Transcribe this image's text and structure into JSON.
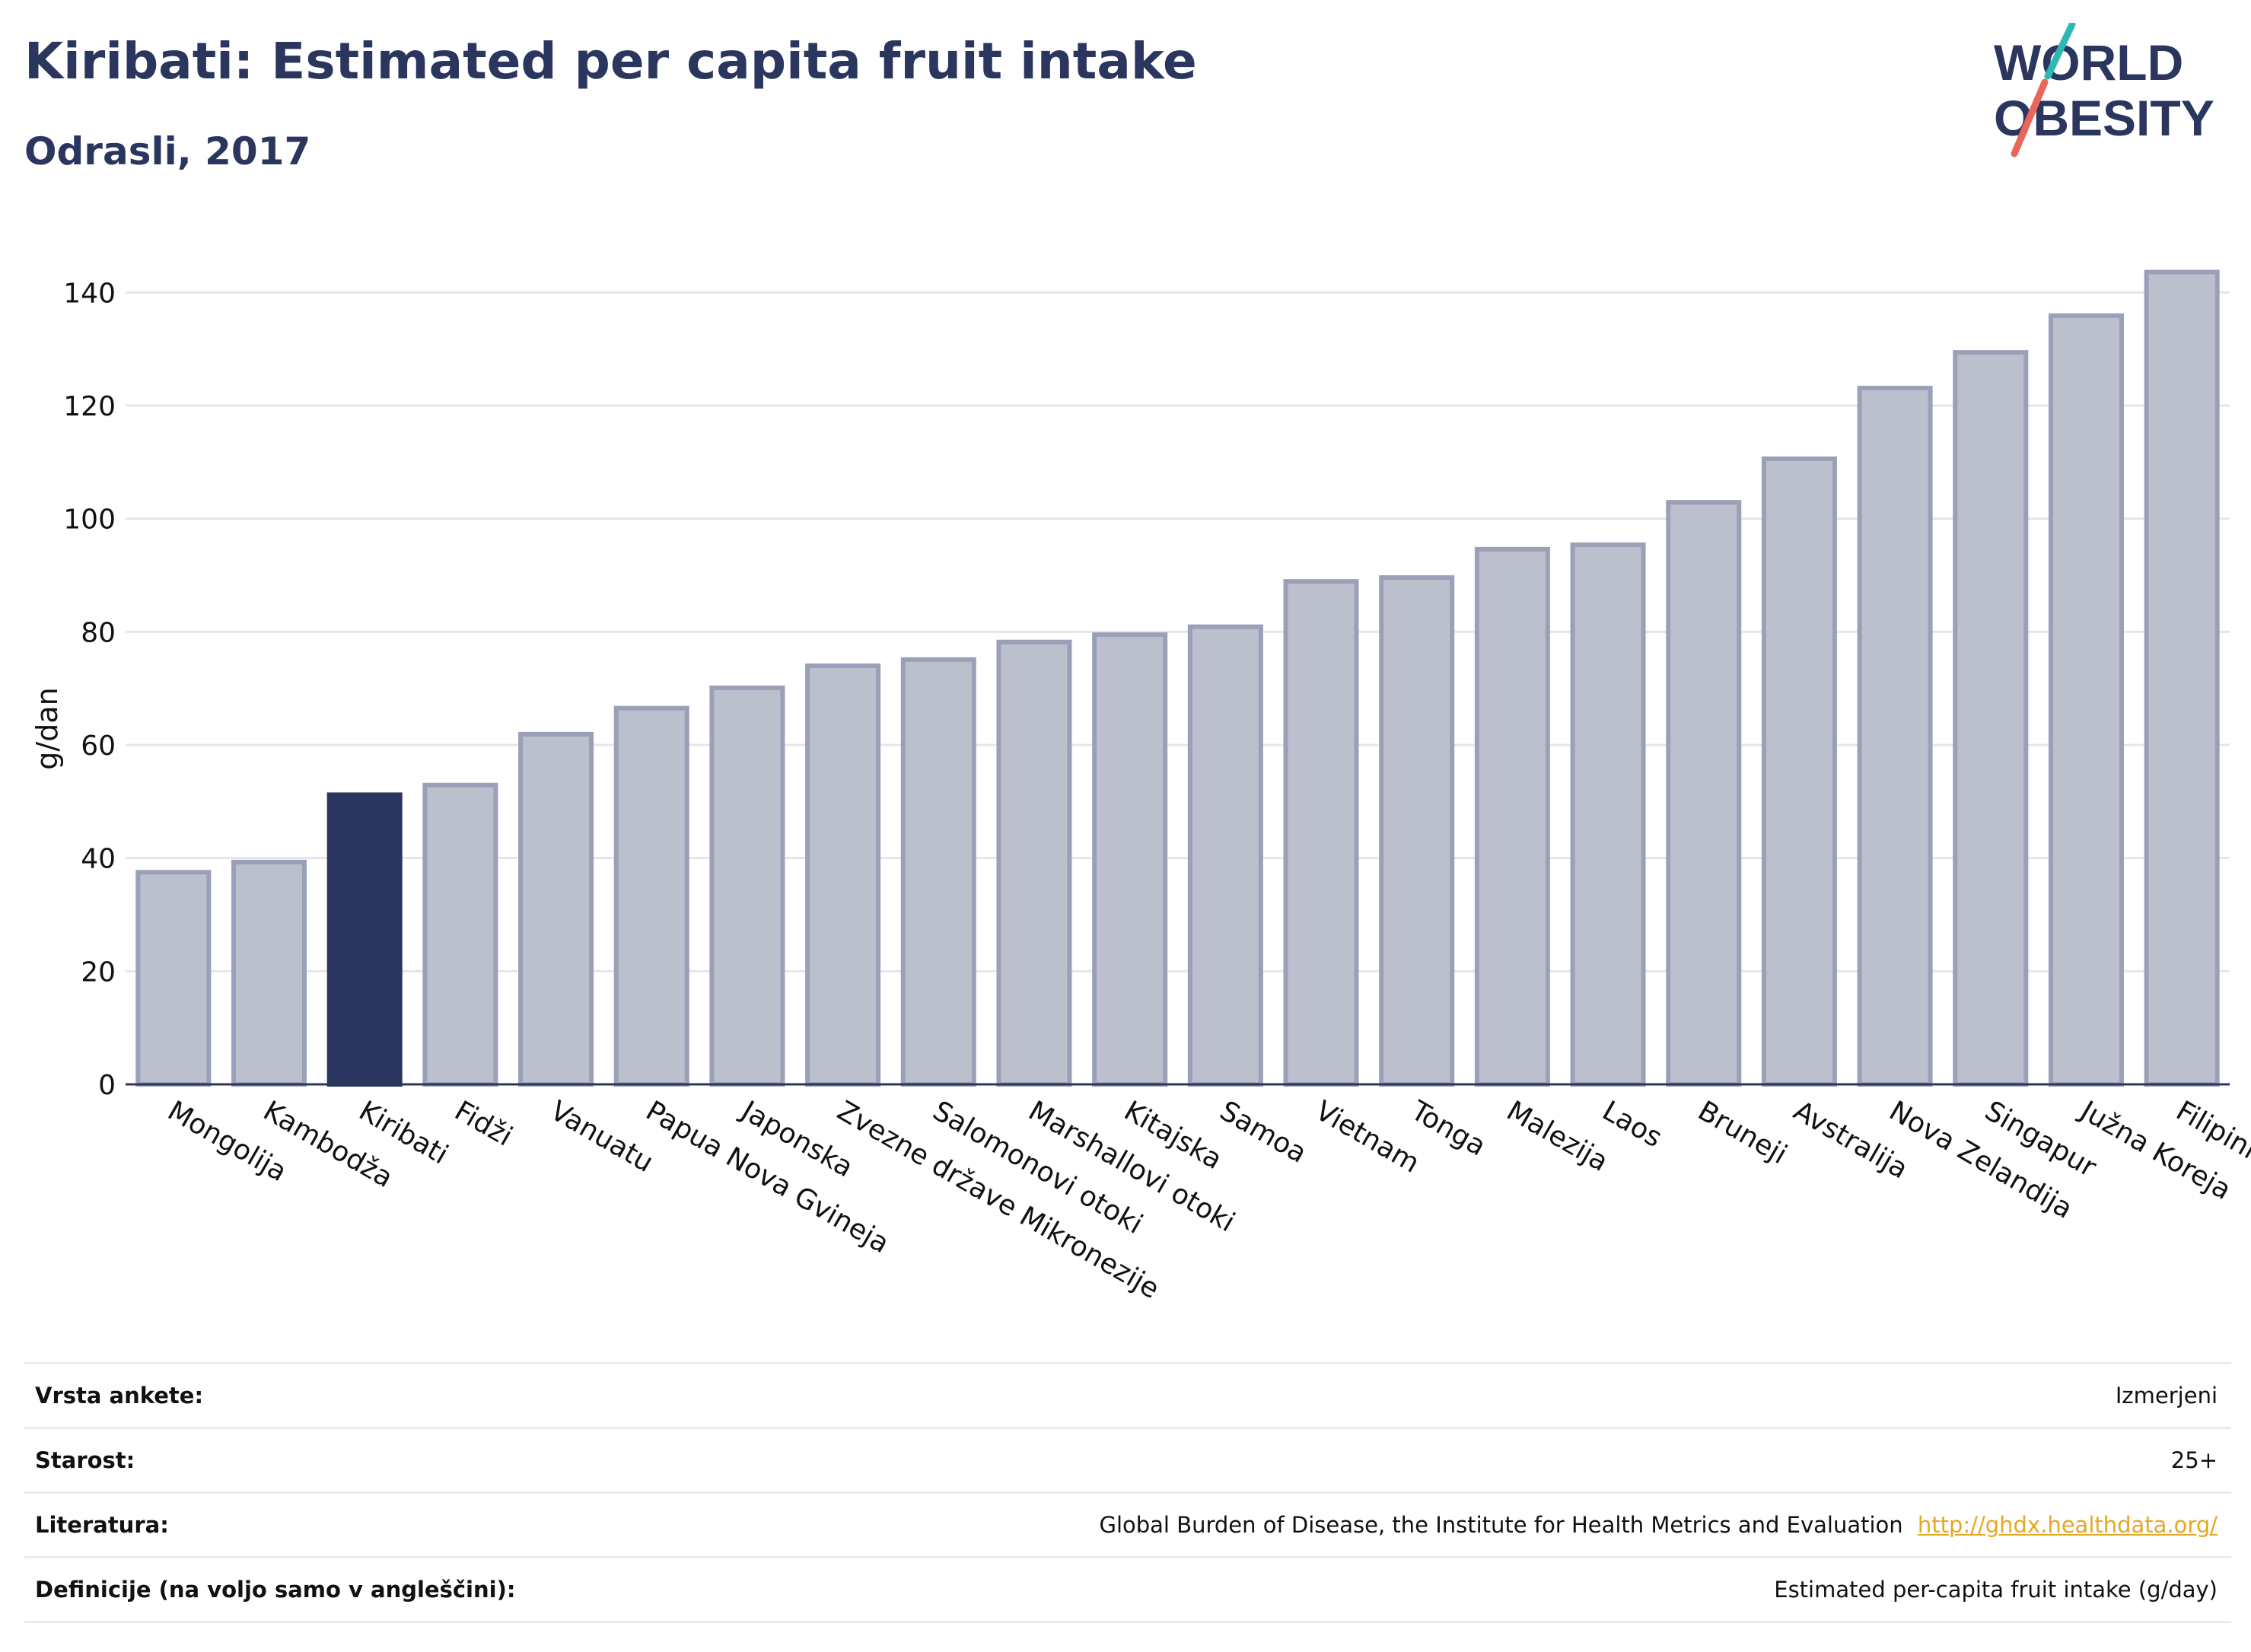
{
  "header": {
    "title": "Kiribati: Estimated per capita fruit intake",
    "subtitle": "Odrasli, 2017"
  },
  "logo": {
    "line1": "WORLD",
    "line2": "OBESITY",
    "accent_teal": "#2fb8b3",
    "accent_coral": "#e8665a"
  },
  "chart_data": {
    "type": "bar",
    "title": "Kiribati: Estimated per capita fruit intake",
    "subtitle": "Odrasli, 2017",
    "ylabel": "g/dan",
    "xlabel": "",
    "ylim": [
      0,
      150
    ],
    "yticks": [
      0,
      20,
      40,
      60,
      80,
      100,
      120,
      140
    ],
    "grid": true,
    "highlight": "Kiribati",
    "colors": {
      "default": "#bcc0cd",
      "default_border": "#9aa0b8",
      "highlight": "#2b365e"
    },
    "categories": [
      "Mongolija",
      "Kambodža",
      "Kiribati",
      "Fidži",
      "Vanuatu",
      "Papua Nova Gvineja",
      "Japonska",
      "Zvezne države Mikronezije",
      "Salomonovi otoki",
      "Marshallovi otoki",
      "Kitajska",
      "Samoa",
      "Vietnam",
      "Tonga",
      "Malezija",
      "Laos",
      "Bruneji",
      "Avstralija",
      "Nova Zelandija",
      "Singapur",
      "Južna Koreja",
      "Filipini"
    ],
    "values": [
      37.5,
      39.3,
      51.2,
      52.9,
      61.9,
      66.5,
      70.1,
      74.0,
      75.1,
      78.2,
      79.5,
      80.9,
      88.9,
      89.6,
      94.6,
      95.4,
      102.9,
      110.6,
      123.1,
      129.4,
      135.9,
      143.6
    ]
  },
  "info": {
    "rows": [
      {
        "label": "Vrsta ankete:",
        "value": "Izmerjeni"
      },
      {
        "label": "Starost:",
        "value": "25+"
      },
      {
        "label": "Literatura:",
        "value": "Global Burden of Disease, the Institute for Health Metrics and Evaluation",
        "link": "http://ghdx.healthdata.org/"
      },
      {
        "label": "Definicije (na voljo samo v angleščini):",
        "value": "Estimated per-capita fruit intake (g/day)"
      }
    ]
  }
}
